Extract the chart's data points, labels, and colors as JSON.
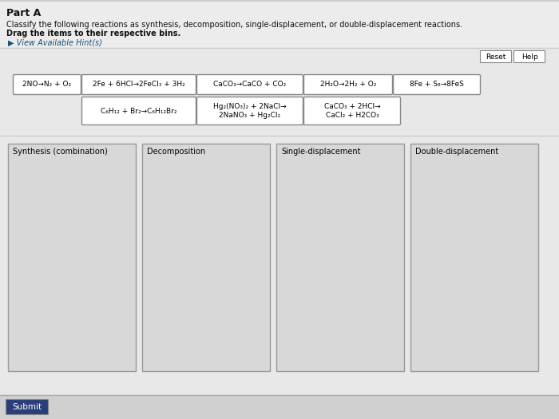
{
  "title": "Part A",
  "instruction1": "Classify the following reactions as synthesis, decomposition, single-displacement, or double-displacement reactions.",
  "instruction2": "Drag the items to their respective bins.",
  "hint_link": "▶ View Available Hint(s)",
  "bg_light": "#f0f0f0",
  "bg_main": "#e0e0e0",
  "box_bg": "#ffffff",
  "bin_bg": "#d8d8d8",
  "reaction_row1": [
    "2NO→N₂ + O₂",
    "2Fe + 6HCl→2FeCl₃ + 3H₂",
    "CaCO₃→CaCO + CO₂",
    "2H₂O→2H₂ + O₂",
    "8Fe + S₈→8FeS"
  ],
  "reaction_row2": [
    "C₆H₁₂ + Br₂→C₆H₁₂Br₂",
    "Hg₂(NO₃)₂ + 2NaCl→\n2NaNO₃ + Hg₂Cl₂",
    "CaCO₃ + 2HCl→\nCaCl₂ + H2CO₃"
  ],
  "bin_labels": [
    "Synthesis (combination)",
    "Decomposition",
    "Single-displacement",
    "Double-displacement"
  ],
  "reset_label": "Reset",
  "help_label": "Help",
  "submit_label": "Submit",
  "border_color": "#aaaaaa",
  "text_color": "#111111",
  "hint_color": "#1a5276",
  "submit_bg": "#2c3e7a"
}
